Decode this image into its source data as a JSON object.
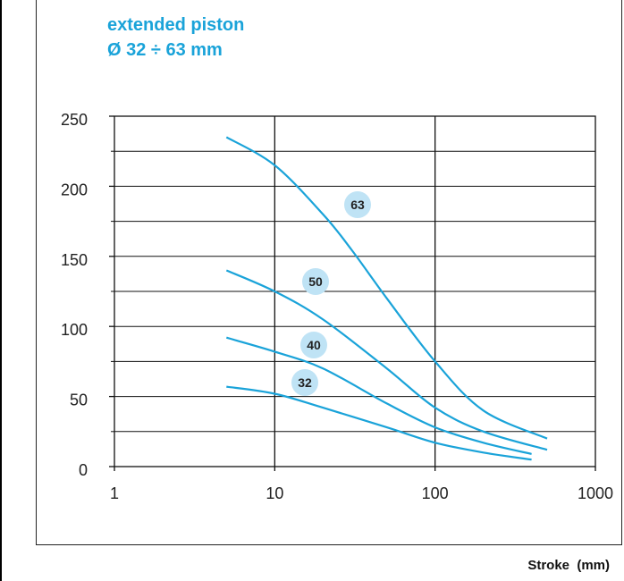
{
  "chart_data": {
    "type": "line",
    "title_lines": [
      "extended piston",
      "Ø 32 ÷ 63 mm"
    ],
    "xlabel": "Stroke  (mm)",
    "ylabel": "",
    "x_scale": "log",
    "xlim": [
      1,
      1000
    ],
    "ylim": [
      0,
      250
    ],
    "x_ticks": [
      "1",
      "10",
      "100",
      "1000"
    ],
    "y_ticks": [
      "0",
      "50",
      "100",
      "150",
      "200",
      "250"
    ],
    "grid": true,
    "series": [
      {
        "name": "63",
        "x": [
          5,
          10,
          20,
          30,
          50,
          100,
          200,
          500
        ],
        "y": [
          235,
          215,
          180,
          155,
          120,
          75,
          40,
          20
        ]
      },
      {
        "name": "50",
        "x": [
          5,
          10,
          20,
          50,
          100,
          200,
          500
        ],
        "y": [
          140,
          125,
          105,
          70,
          42,
          25,
          12
        ]
      },
      {
        "name": "40",
        "x": [
          5,
          10,
          20,
          50,
          100,
          200,
          400
        ],
        "y": [
          92,
          82,
          70,
          45,
          28,
          17,
          9
        ]
      },
      {
        "name": "32",
        "x": [
          5,
          10,
          20,
          50,
          100,
          200,
          400
        ],
        "y": [
          57,
          52,
          42,
          28,
          17,
          10,
          5
        ]
      }
    ],
    "colors": {
      "line": "#1aa3d9",
      "badge_fill": "#bfe3f5",
      "grid": "#111111"
    }
  }
}
